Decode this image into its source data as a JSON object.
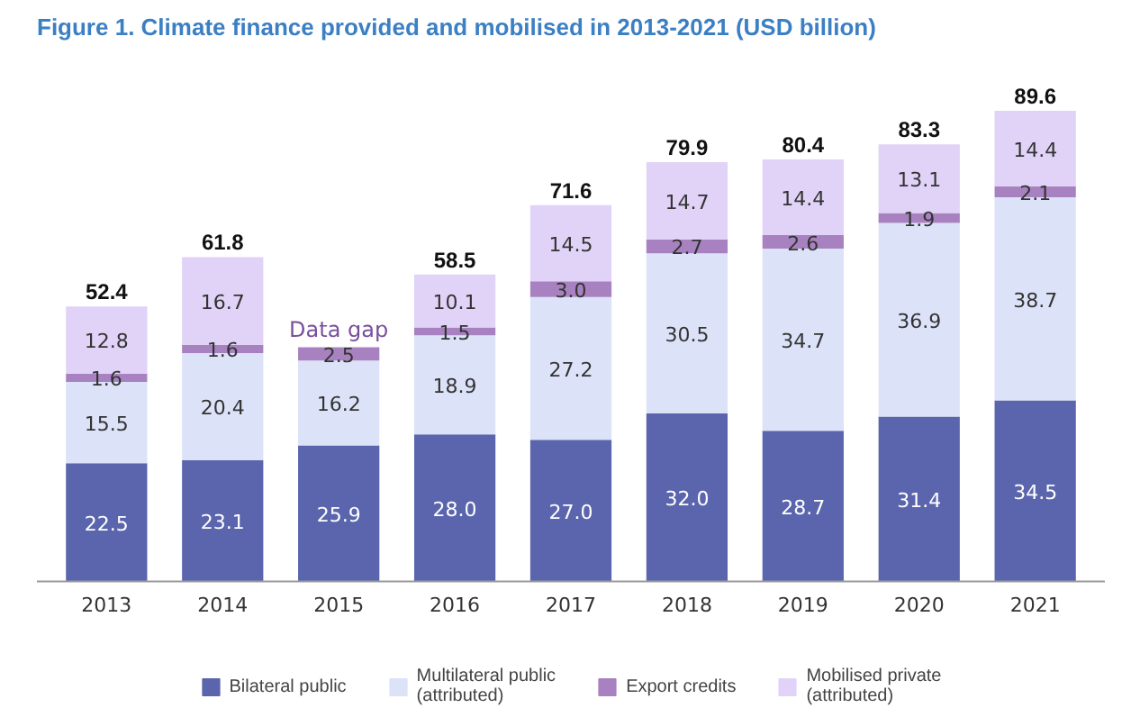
{
  "chart_data": {
    "type": "bar",
    "stacked": true,
    "title": "Figure 1.  Climate finance provided and mobilised in 2013-2021 (USD billion)",
    "categories": [
      "2013",
      "2014",
      "2015",
      "2016",
      "2017",
      "2018",
      "2019",
      "2020",
      "2021"
    ],
    "series": [
      {
        "name": "Bilateral public",
        "color": "#5a65ad",
        "values": [
          22.5,
          23.1,
          25.9,
          28.0,
          27.0,
          32.0,
          28.7,
          31.4,
          34.5
        ],
        "value_labels": [
          "22.5",
          "23.1",
          "25.9",
          "28.0",
          "27.0",
          "32.0",
          "28.7",
          "31.4",
          "34.5"
        ]
      },
      {
        "name": "Multilateral public\n(attributed)",
        "color": "#dce2f8",
        "values": [
          15.5,
          20.4,
          16.2,
          18.9,
          27.2,
          30.5,
          34.7,
          36.9,
          38.7
        ],
        "value_labels": [
          "15.5",
          "20.4",
          "16.2",
          "18.9",
          "27.2",
          "30.5",
          "34.7",
          "36.9",
          "38.7"
        ]
      },
      {
        "name": "Export credits",
        "color": "#a882c0",
        "values": [
          1.6,
          1.6,
          2.5,
          1.5,
          3.0,
          2.7,
          2.6,
          1.9,
          2.1
        ],
        "value_labels": [
          "1.6",
          "1.6",
          "2.5",
          "1.5",
          "3.0",
          "2.7",
          "2.6",
          "1.9",
          "2.1"
        ]
      },
      {
        "name": "Mobilised private\n(attributed)",
        "color": "#e0d3f7",
        "values": [
          12.8,
          16.7,
          null,
          10.1,
          14.5,
          14.7,
          14.4,
          13.1,
          14.4
        ],
        "value_labels": [
          "12.8",
          "16.7",
          null,
          "10.1",
          "14.5",
          "14.7",
          "14.4",
          "13.1",
          "14.4"
        ]
      }
    ],
    "totals": [
      "52.4",
      "61.8",
      null,
      "58.5",
      "71.6",
      "79.9",
      "80.4",
      "83.3",
      "89.6"
    ],
    "annotations": [
      {
        "text": "Data gap",
        "x": "2015",
        "y": 44.6
      }
    ],
    "data_labels": true,
    "legend": "bottom",
    "grid": false
  }
}
